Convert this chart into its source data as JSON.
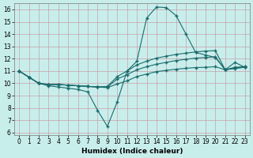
{
  "title": "",
  "xlabel": "Humidex (Indice chaleur)",
  "ylabel": "",
  "bg_color": "#c8eeec",
  "line_color": "#1a6b6b",
  "grid_color": "#c8a0a8",
  "xlim": [
    -0.5,
    23.5
  ],
  "ylim": [
    5.8,
    16.5
  ],
  "xticks": [
    0,
    1,
    2,
    3,
    4,
    5,
    6,
    7,
    8,
    9,
    10,
    11,
    12,
    13,
    14,
    15,
    16,
    17,
    18,
    19,
    20,
    21,
    22,
    23
  ],
  "yticks": [
    6,
    7,
    8,
    9,
    10,
    11,
    12,
    13,
    14,
    15,
    16
  ],
  "line1_x": [
    0,
    1,
    2,
    3,
    4,
    5,
    6,
    7,
    8,
    9,
    10,
    11,
    12,
    13,
    14,
    15,
    16,
    17,
    18,
    19,
    20,
    21,
    22,
    23
  ],
  "line1_y": [
    11.0,
    10.5,
    10.0,
    9.8,
    9.7,
    9.6,
    9.5,
    9.3,
    7.8,
    6.5,
    8.5,
    11.0,
    11.8,
    15.3,
    16.2,
    16.15,
    15.5,
    14.0,
    12.5,
    12.3,
    12.1,
    11.1,
    11.7,
    11.3
  ],
  "line2_x": [
    0,
    1,
    2,
    3,
    4,
    5,
    6,
    7,
    8,
    9,
    10,
    11,
    12,
    13,
    14,
    15,
    16,
    17,
    18,
    19,
    20,
    21,
    22,
    23
  ],
  "line2_y": [
    11.0,
    10.5,
    10.0,
    9.9,
    9.9,
    9.85,
    9.8,
    9.75,
    9.7,
    9.65,
    9.95,
    10.2,
    10.55,
    10.75,
    10.95,
    11.05,
    11.15,
    11.22,
    11.28,
    11.3,
    11.35,
    11.1,
    11.2,
    11.3
  ],
  "line3_x": [
    0,
    1,
    2,
    3,
    4,
    5,
    6,
    7,
    8,
    9,
    10,
    11,
    12,
    13,
    14,
    15,
    16,
    17,
    18,
    19,
    20,
    21,
    22,
    23
  ],
  "line3_y": [
    11.0,
    10.5,
    10.0,
    9.9,
    9.9,
    9.85,
    9.8,
    9.75,
    9.7,
    9.7,
    10.35,
    10.7,
    11.1,
    11.35,
    11.55,
    11.7,
    11.85,
    11.95,
    12.05,
    12.1,
    12.15,
    11.1,
    11.25,
    11.35
  ],
  "line4_x": [
    0,
    1,
    2,
    3,
    4,
    5,
    6,
    7,
    8,
    9,
    10,
    11,
    12,
    13,
    14,
    15,
    16,
    17,
    18,
    19,
    20,
    21,
    22,
    23
  ],
  "line4_y": [
    11.0,
    10.5,
    10.0,
    9.9,
    9.9,
    9.85,
    9.8,
    9.75,
    9.7,
    9.75,
    10.55,
    11.0,
    11.5,
    11.8,
    12.05,
    12.2,
    12.35,
    12.45,
    12.55,
    12.62,
    12.65,
    11.1,
    11.3,
    11.35
  ],
  "marker": "+",
  "markersize": 3,
  "linewidth": 0.8,
  "tick_fontsize": 5.5,
  "xlabel_fontsize": 6.5,
  "xlabel_fontweight": "bold"
}
